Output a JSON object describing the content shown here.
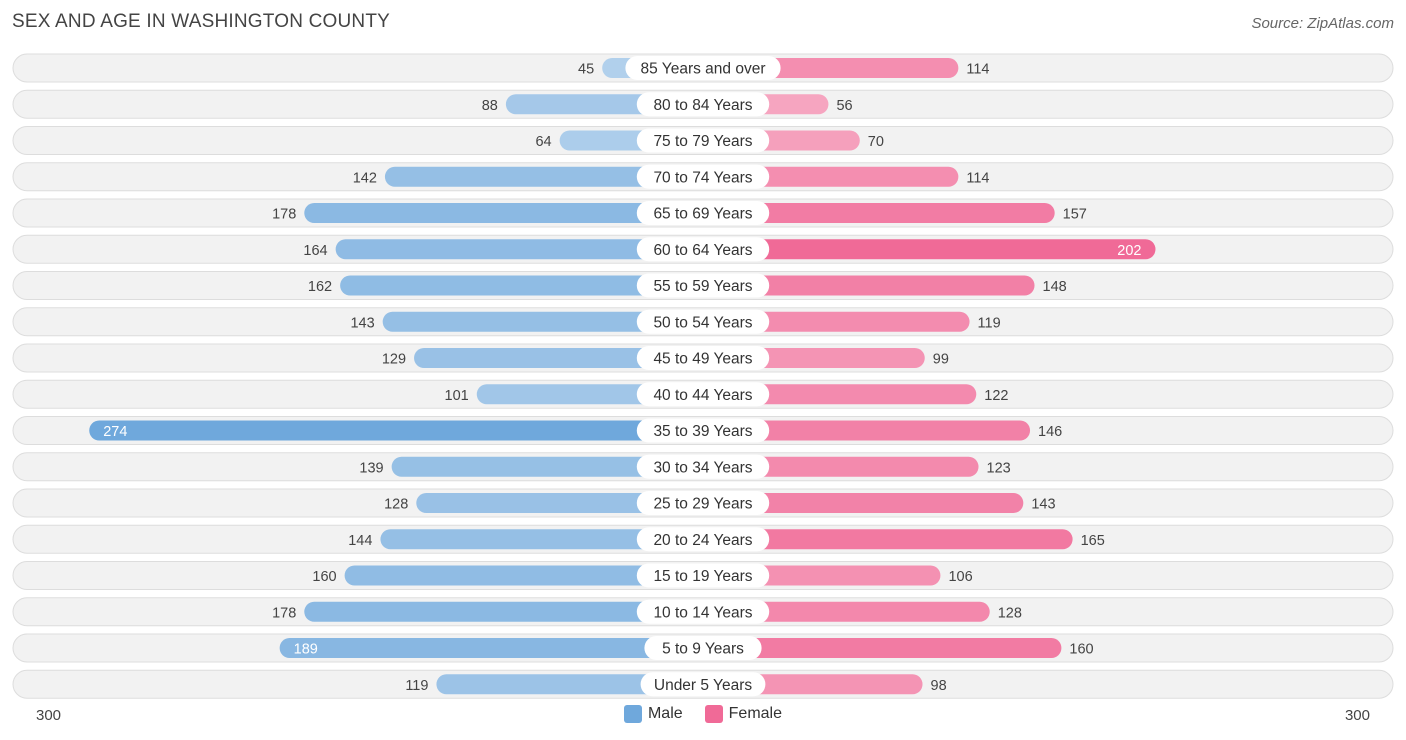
{
  "title": "SEX AND AGE IN WASHINGTON COUNTY",
  "source": "Source: ZipAtlas.com",
  "colors": {
    "male": "#6fa8dc",
    "female": "#f06a97"
  },
  "legend": {
    "male": "Male",
    "female": "Female"
  },
  "axis": {
    "left_label": "300",
    "right_label": "300"
  },
  "chart_data": {
    "type": "bar",
    "orientation": "horizontal-diverging",
    "title": "SEX AND AGE IN WASHINGTON COUNTY",
    "xlim": [
      -300,
      300
    ],
    "categories": [
      "85 Years and over",
      "80 to 84 Years",
      "75 to 79 Years",
      "70 to 74 Years",
      "65 to 69 Years",
      "60 to 64 Years",
      "55 to 59 Years",
      "50 to 54 Years",
      "45 to 49 Years",
      "40 to 44 Years",
      "35 to 39 Years",
      "30 to 34 Years",
      "25 to 29 Years",
      "20 to 24 Years",
      "15 to 19 Years",
      "10 to 14 Years",
      "5 to 9 Years",
      "Under 5 Years"
    ],
    "series": [
      {
        "name": "Male",
        "values": [
          45,
          88,
          64,
          142,
          178,
          164,
          162,
          143,
          129,
          101,
          274,
          139,
          128,
          144,
          160,
          178,
          189,
          119
        ]
      },
      {
        "name": "Female",
        "values": [
          114,
          56,
          70,
          114,
          157,
          202,
          148,
          119,
          99,
          122,
          146,
          123,
          143,
          165,
          106,
          128,
          160,
          98
        ]
      }
    ]
  }
}
